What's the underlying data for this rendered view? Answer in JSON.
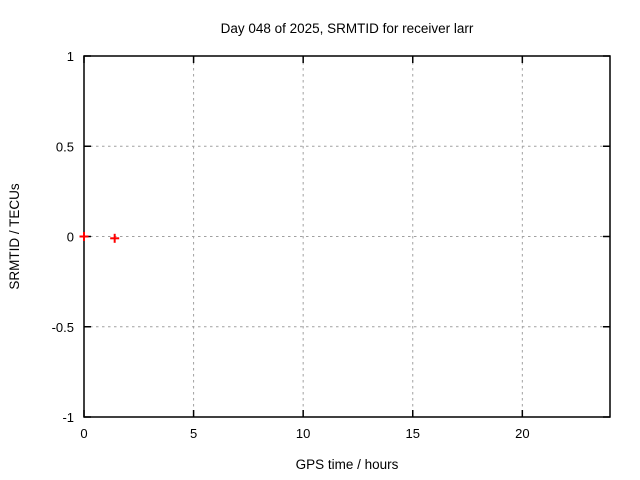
{
  "chart_data": {
    "type": "scatter",
    "title": "Day 048 of 2025, SRMTID for receiver larr",
    "xlabel": "GPS time / hours",
    "ylabel": "SRMTID / TECUs",
    "xlim": [
      0,
      24
    ],
    "ylim": [
      -1,
      1
    ],
    "xticks": {
      "values": [
        0,
        5,
        10,
        15,
        20
      ],
      "labels": [
        "0",
        "5",
        "10",
        "15",
        "20"
      ]
    },
    "yticks": {
      "values": [
        1,
        0.5,
        0,
        -0.5,
        -1
      ],
      "labels": [
        "1",
        "0.5",
        "0",
        "-0.5",
        "-1"
      ]
    },
    "grid": "dotted gray lines at major ticks, ticks mirrored on all four borders",
    "legend": "none",
    "series": [
      {
        "name": "SRMTID",
        "marker": "plus",
        "color": "#ff0000",
        "points": [
          [
            0.0,
            0.0
          ],
          [
            1.4,
            -0.01
          ]
        ]
      }
    ]
  },
  "style": {
    "background": "#ffffff",
    "border_color": "#000000",
    "grid_color": "#a0a0a0",
    "text_color": "#000000"
  }
}
